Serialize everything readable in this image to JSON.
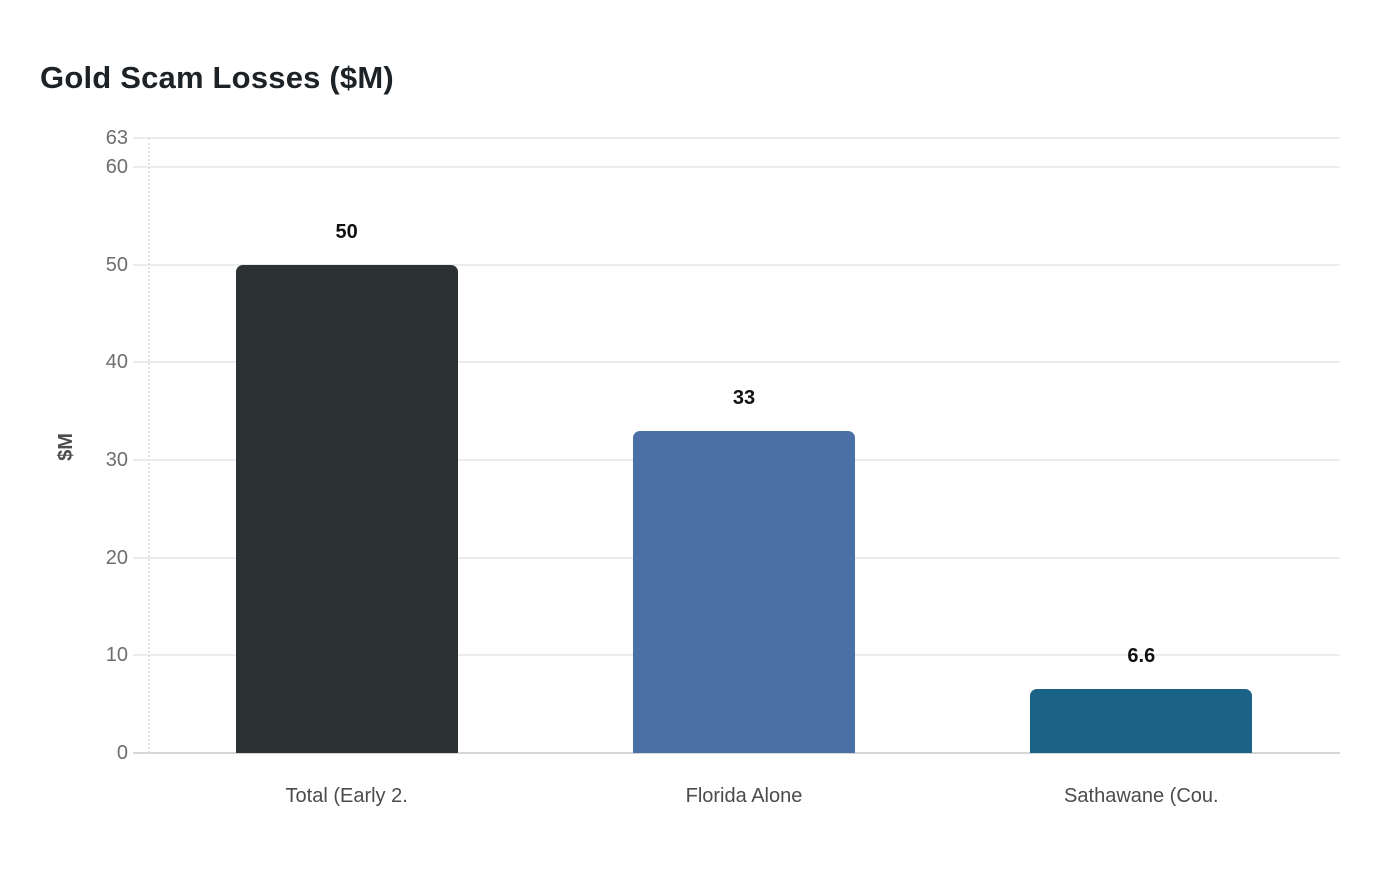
{
  "title": "Gold Scam Losses ($M)",
  "chart_data": {
    "type": "bar",
    "title": "Gold Scam Losses ($M)",
    "categories": [
      "Total (Early 2.",
      "Florida Alone",
      "Sathawane (Cou."
    ],
    "values": [
      50,
      33,
      6.6
    ],
    "value_labels": [
      "50",
      "33",
      "6.6"
    ],
    "bar_colors": [
      "#2c3234",
      "#4b70a6",
      "#1a6286"
    ],
    "xlabel": "",
    "ylabel": "$M",
    "ylim": [
      0,
      63
    ],
    "yticks": [
      0,
      10,
      20,
      30,
      40,
      50,
      60,
      63
    ],
    "grid": true,
    "legend": false,
    "background": "#ffffff",
    "gridline_color": "#ececec",
    "axis_line_color": "#d6d6d6",
    "tick_label_color": "#6e6e6e",
    "value_label_color": "#101010",
    "title_color": "#1d2226"
  }
}
